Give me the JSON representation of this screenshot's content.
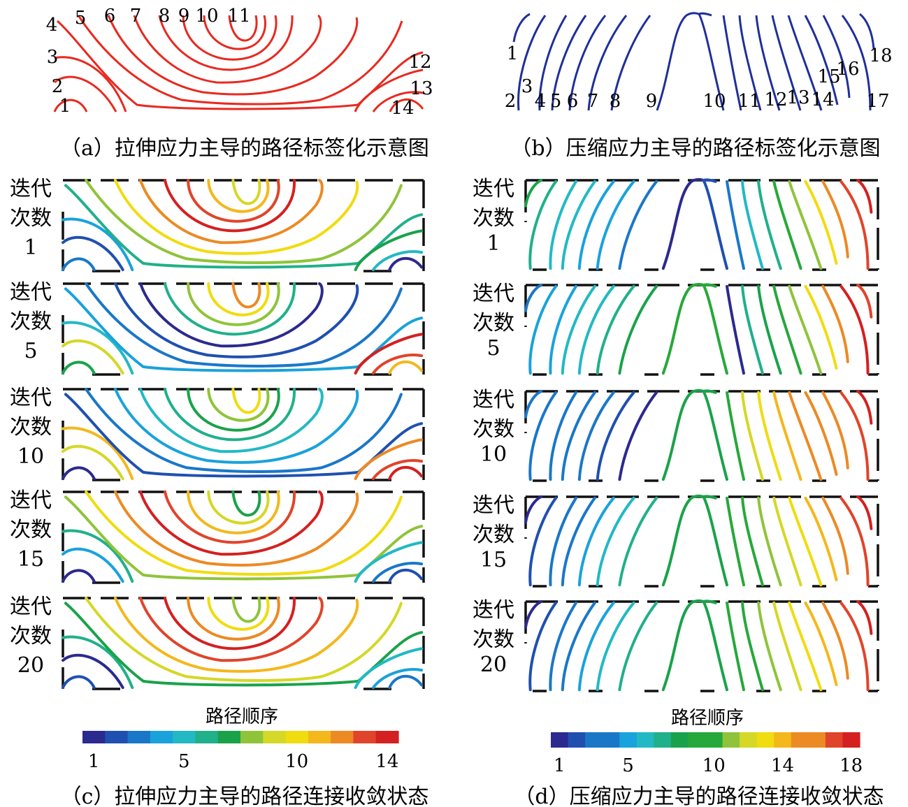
{
  "panel_a": {
    "caption": "（a）拉伸应力主导的路径标签化示意图",
    "labels": [
      "1",
      "2",
      "3",
      "4",
      "5",
      "6",
      "7",
      "8",
      "9",
      "10",
      "11",
      "12",
      "13",
      "14"
    ]
  },
  "panel_b": {
    "caption": "（b）压缩应力主导的路径标签化示意图",
    "labels": [
      "1",
      "2",
      "3",
      "4",
      "5",
      "6",
      "7",
      "8",
      "9",
      "10",
      "11",
      "12",
      "13",
      "14",
      "15",
      "16",
      "17",
      "18"
    ]
  },
  "panel_c": {
    "caption": "（c）拉伸应力主导的路径连接收敛状态",
    "iterations": [
      {
        "line1": "迭代",
        "line2": "次数",
        "num": "1"
      },
      {
        "line1": "迭代",
        "line2": "次数",
        "num": "5"
      },
      {
        "line1": "迭代",
        "line2": "次数",
        "num": "10"
      },
      {
        "line1": "迭代",
        "line2": "次数",
        "num": "15"
      },
      {
        "line1": "迭代",
        "line2": "次数",
        "num": "20"
      }
    ],
    "colorbar": {
      "title": "路径顺序",
      "ticks": [
        "1",
        "5",
        "10",
        "14"
      ]
    }
  },
  "panel_d": {
    "caption": "（d）压缩应力主导的路径连接收敛状态",
    "iterations": [
      {
        "line1": "迭代",
        "line2": "次数",
        "num": "1"
      },
      {
        "line1": "迭代",
        "line2": "次数",
        "num": "5"
      },
      {
        "line1": "迭代",
        "line2": "次数",
        "num": "10"
      },
      {
        "line1": "迭代",
        "line2": "次数",
        "num": "15"
      },
      {
        "line1": "迭代",
        "line2": "次数",
        "num": "20"
      }
    ],
    "colorbar": {
      "title": "路径顺序",
      "ticks": [
        "1",
        "5",
        "10",
        "14",
        "18"
      ]
    }
  },
  "colors": {
    "panel_a_paths": "#e8291f",
    "panel_b_paths": "#1f2f9a",
    "frame": "#111111",
    "colormap": [
      "#2b2a8e",
      "#1f50b0",
      "#1a77c8",
      "#19a2dc",
      "#22b9c4",
      "#20b08a",
      "#1aa24a",
      "#27a83a",
      "#8fc43a",
      "#d5d826",
      "#f0dc10",
      "#f4b81c",
      "#ec8a24",
      "#e0442a",
      "#d42020"
    ]
  }
}
